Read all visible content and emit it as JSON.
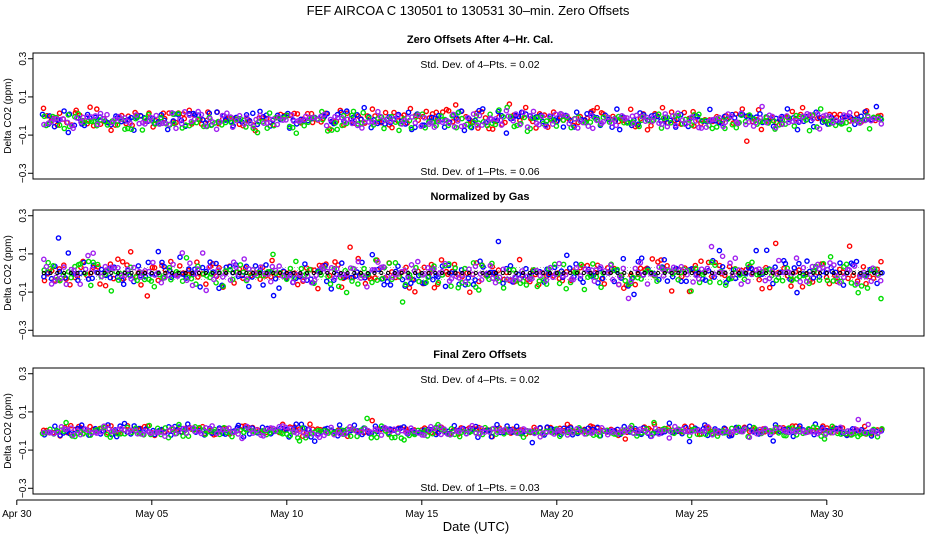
{
  "figure": {
    "title": "FEF   AIRCOA C   130501 to 130531   30–min. Zero Offsets",
    "xlabel": "Date (UTC)"
  },
  "colors": {
    "red": "#ff0000",
    "blue": "#0000ff",
    "green": "#00dd00",
    "purple": "#a020f0",
    "black": "#000000",
    "band": "#b3b3b3"
  },
  "chart_data": [
    {
      "type": "scatter",
      "title": "Zero Offsets After 4–Hr. Cal.",
      "ylabel": "Delta CO2 (ppm)",
      "ylim": [
        -0.33,
        0.33
      ],
      "yticks": [
        0.3,
        0.1,
        -0.1,
        -0.3
      ],
      "ytick_labels": [
        "0.3",
        "0.1",
        "−0.1",
        "−0.3"
      ],
      "xlim": [
        0.6,
        33.6
      ],
      "xticks": [
        0,
        5,
        10,
        15,
        20,
        25,
        30
      ],
      "xtick_labels": [
        "Apr 30",
        "May 05",
        "May 10",
        "May 15",
        "May 20",
        "May 25",
        "May 30"
      ],
      "show_xticks": false,
      "annotations": {
        "top": "Std. Dev. of 4–Pts. =  0.02",
        "bottom": "Std. Dev. of 1–Pts. =  0.06"
      },
      "series": [
        {
          "name": "red",
          "color_key": "red",
          "center": -0.015,
          "spread": 0.035
        },
        {
          "name": "blue",
          "color_key": "blue",
          "center": -0.015,
          "spread": 0.035
        },
        {
          "name": "green",
          "color_key": "green",
          "center": -0.03,
          "spread": 0.035
        },
        {
          "name": "purple",
          "color_key": "purple",
          "center": -0.02,
          "spread": 0.03
        }
      ],
      "date_range": [
        1.0,
        32.0
      ]
    },
    {
      "type": "scatter",
      "title": "Normalized by Gas",
      "ylabel": "Delta CO2 (ppm)",
      "ylim": [
        -0.33,
        0.33
      ],
      "yticks": [
        0.3,
        0.1,
        -0.1,
        -0.3
      ],
      "ytick_labels": [
        "0.3",
        "0.1",
        "−0.1",
        "−0.3"
      ],
      "xlim": [
        0.6,
        33.6
      ],
      "xticks": [
        0,
        5,
        10,
        15,
        20,
        25,
        30
      ],
      "xtick_labels": [
        "Apr 30",
        "May 05",
        "May 10",
        "May 15",
        "May 20",
        "May 25",
        "May 30"
      ],
      "show_xticks": false,
      "mean_line": 0.0,
      "band": [
        -0.04,
        0.04
      ],
      "series": [
        {
          "name": "red",
          "color_key": "red",
          "center": 0.0,
          "spread": 0.055
        },
        {
          "name": "blue",
          "color_key": "blue",
          "center": 0.0,
          "spread": 0.055
        },
        {
          "name": "green",
          "color_key": "green",
          "center": -0.01,
          "spread": 0.05
        },
        {
          "name": "purple",
          "color_key": "purple",
          "center": 0.0,
          "spread": 0.045
        }
      ],
      "date_range": [
        1.0,
        32.0
      ]
    },
    {
      "type": "scatter",
      "title": "Final Zero Offsets",
      "ylabel": "Delta CO2 (ppm)",
      "ylim": [
        -0.33,
        0.33
      ],
      "yticks": [
        0.3,
        0.1,
        -0.1,
        -0.3
      ],
      "ytick_labels": [
        "0.3",
        "0.1",
        "−0.1",
        "−0.3"
      ],
      "xlim": [
        0.6,
        33.6
      ],
      "xticks": [
        0,
        5,
        10,
        15,
        20,
        25,
        30
      ],
      "xtick_labels": [
        "Apr 30",
        "May 05",
        "May 10",
        "May 15",
        "May 20",
        "May 25",
        "May 30"
      ],
      "show_xticks": true,
      "annotations": {
        "top": "Std. Dev. of 4–Pts. =  0.02",
        "bottom": "Std. Dev. of 1–Pts. =  0.03"
      },
      "series": [
        {
          "name": "red",
          "color_key": "red",
          "center": 0.005,
          "spread": 0.02
        },
        {
          "name": "blue",
          "color_key": "blue",
          "center": 0.0,
          "spread": 0.02
        },
        {
          "name": "green",
          "color_key": "green",
          "center": -0.005,
          "spread": 0.02
        },
        {
          "name": "purple",
          "color_key": "purple",
          "center": 0.0,
          "spread": 0.018
        }
      ],
      "date_range": [
        1.0,
        32.0
      ]
    }
  ]
}
